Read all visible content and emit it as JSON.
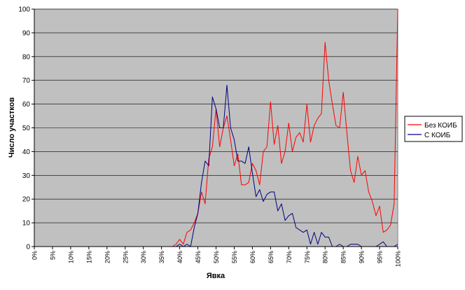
{
  "chart_data": {
    "type": "line",
    "title": "",
    "xlabel": "Явка",
    "ylabel": "Число участков",
    "ylim": [
      0,
      100
    ],
    "yticks": [
      0,
      10,
      20,
      30,
      40,
      50,
      60,
      70,
      80,
      90,
      100
    ],
    "xlim": [
      0,
      100
    ],
    "xtick_labels": [
      "0%",
      "5%",
      "10%",
      "15%",
      "20%",
      "25%",
      "30%",
      "35%",
      "40%",
      "45%",
      "50%",
      "55%",
      "60%",
      "65%",
      "70%",
      "75%",
      "80%",
      "85%",
      "90%",
      "95%",
      "100%"
    ],
    "x_unit": "%",
    "grid": "horizontal",
    "legend_position": "right",
    "background": "#c0c0c0",
    "x": [
      0,
      1,
      2,
      3,
      4,
      5,
      6,
      7,
      8,
      9,
      10,
      11,
      12,
      13,
      14,
      15,
      16,
      17,
      18,
      19,
      20,
      21,
      22,
      23,
      24,
      25,
      26,
      27,
      28,
      29,
      30,
      31,
      32,
      33,
      34,
      35,
      36,
      37,
      38,
      39,
      40,
      41,
      42,
      43,
      44,
      45,
      46,
      47,
      48,
      49,
      50,
      51,
      52,
      53,
      54,
      55,
      56,
      57,
      58,
      59,
      60,
      61,
      62,
      63,
      64,
      65,
      66,
      67,
      68,
      69,
      70,
      71,
      72,
      73,
      74,
      75,
      76,
      77,
      78,
      79,
      80,
      81,
      82,
      83,
      84,
      85,
      86,
      87,
      88,
      89,
      90,
      91,
      92,
      93,
      94,
      95,
      96,
      97,
      98,
      99,
      100
    ],
    "series": [
      {
        "name": "Без КОИБ",
        "color": "#ff0000",
        "values": [
          0,
          0,
          0,
          0,
          0,
          0,
          0,
          0,
          0,
          0,
          0,
          0,
          0,
          0,
          0,
          0,
          0,
          0,
          0,
          0,
          0,
          0,
          0,
          0,
          0,
          0,
          0,
          0,
          0,
          0,
          0,
          0,
          0,
          0,
          0,
          0,
          0,
          0,
          0,
          1,
          3,
          1,
          6,
          7,
          10,
          14,
          23,
          18,
          37,
          42,
          58,
          42,
          50,
          55,
          45,
          34,
          39,
          26,
          26,
          27,
          35,
          32,
          26,
          40,
          42,
          61,
          43,
          51,
          35,
          40,
          52,
          40,
          46,
          48,
          44,
          60,
          44,
          51,
          54,
          56,
          86,
          70,
          60,
          51,
          50,
          65,
          48,
          32,
          27,
          38,
          30,
          32,
          23,
          19,
          13,
          17,
          6,
          7,
          9,
          18,
          100
        ]
      },
      {
        "name": "С КОИБ",
        "color": "#000080",
        "values": [
          0,
          0,
          0,
          0,
          0,
          0,
          0,
          0,
          0,
          0,
          0,
          0,
          0,
          0,
          0,
          0,
          0,
          0,
          0,
          0,
          0,
          0,
          0,
          0,
          0,
          0,
          0,
          0,
          0,
          0,
          0,
          0,
          0,
          0,
          0,
          0,
          0,
          0,
          0,
          0,
          1,
          0,
          1,
          0,
          8,
          14,
          27,
          36,
          34,
          63,
          58,
          50,
          50,
          68,
          50,
          45,
          36,
          36,
          35,
          42,
          31,
          21,
          24,
          19,
          22,
          23,
          23,
          15,
          18,
          11,
          13,
          14,
          8,
          7,
          6,
          7,
          1,
          6,
          1,
          6,
          4,
          4,
          0,
          0,
          1,
          0,
          0,
          1,
          1,
          1,
          0,
          0,
          0,
          0,
          0,
          1,
          2,
          0,
          0,
          0,
          1
        ]
      }
    ]
  }
}
